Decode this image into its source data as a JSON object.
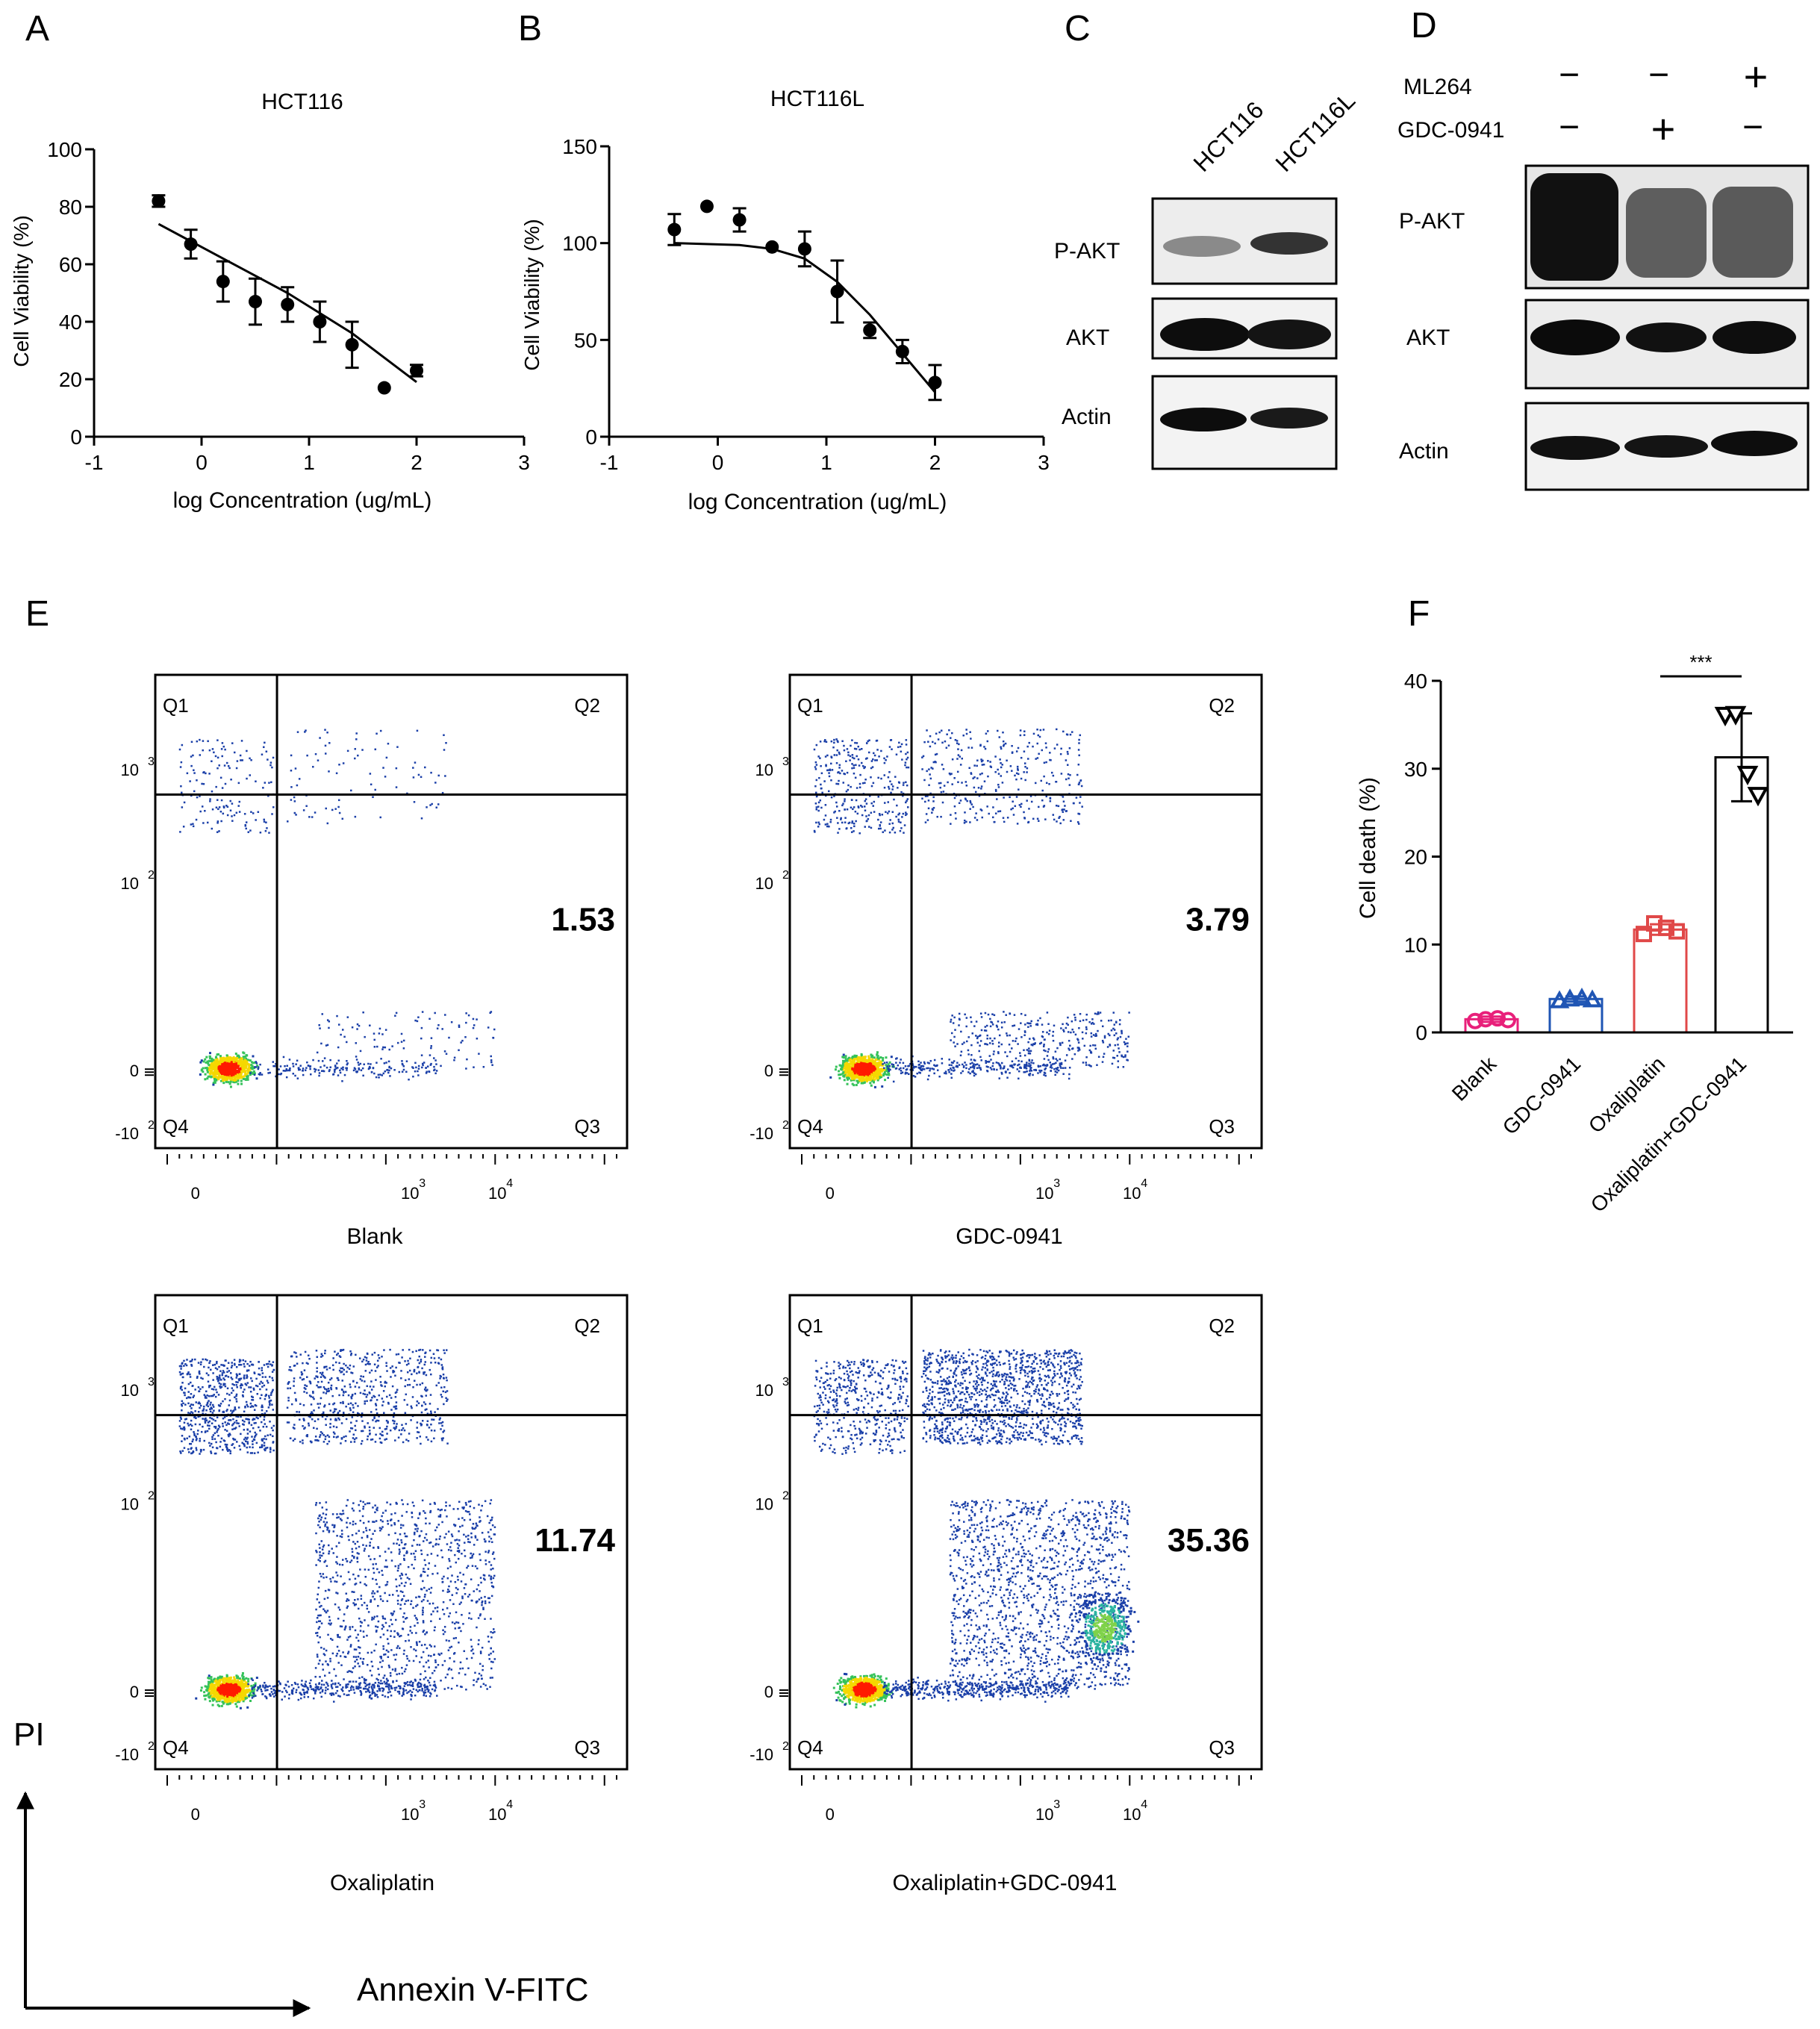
{
  "panels": {
    "A": {
      "letter": "A"
    },
    "B": {
      "letter": "B"
    },
    "C": {
      "letter": "C"
    },
    "D": {
      "letter": "D"
    },
    "E": {
      "letter": "E"
    },
    "F": {
      "letter": "F"
    }
  },
  "blots": {
    "C": {
      "lanes": [
        "HCT116",
        "HCT116L"
      ],
      "rows": [
        "P-AKT",
        "AKT",
        "Actin"
      ]
    },
    "D": {
      "treatments": [
        {
          "name": "ML264",
          "marks": [
            "−",
            "−",
            "+"
          ]
        },
        {
          "name": "GDC-0941",
          "marks": [
            "−",
            "+",
            "−"
          ]
        }
      ],
      "rows": [
        "P-AKT",
        "AKT",
        "Actin"
      ]
    }
  },
  "flow": {
    "quadrants": [
      "Q1",
      "Q2",
      "Q3",
      "Q4"
    ],
    "x_axis_title": "Annexin V-FITC",
    "y_axis_title": "PI",
    "x_ticks": [
      "0",
      "10",
      "10"
    ],
    "x_tick_exponents": [
      "",
      "3",
      "4"
    ],
    "y_ticks": [
      "-10",
      "0",
      "10",
      "10"
    ],
    "y_tick_exponents": [
      "2",
      "",
      "2",
      "3"
    ],
    "plots": [
      {
        "label": "Blank",
        "q3_value": "1.53"
      },
      {
        "label": "GDC-0941",
        "q3_value": "3.79"
      },
      {
        "label": "Oxaliplatin",
        "q3_value": "11.74"
      },
      {
        "label": "Oxaliplatin+GDC-0941",
        "q3_value": "35.36"
      }
    ]
  },
  "colors": {
    "blank": "#e8207a",
    "gdc": "#1f55b4",
    "oxali": "#e04848",
    "combo": "#000000",
    "flow_low": "#1a3fa8",
    "flow_high": "#ff1a00"
  },
  "chart_data": [
    {
      "type": "scatter",
      "panel": "A",
      "title": "HCT116",
      "xlabel": "log Concentration (ug/mL)",
      "ylabel": "Cell Viability (%)",
      "xlim": [
        -1,
        3
      ],
      "ylim": [
        0,
        100
      ],
      "xticks": [
        -1,
        0,
        1,
        2,
        3
      ],
      "yticks": [
        0,
        20,
        40,
        60,
        80,
        100
      ],
      "x": [
        -0.4,
        -0.1,
        0.2,
        0.5,
        0.8,
        1.1,
        1.4,
        1.7,
        2.0
      ],
      "y": [
        82,
        67,
        54,
        47,
        46,
        40,
        32,
        17,
        23
      ],
      "err": [
        2,
        5,
        7,
        8,
        6,
        7,
        8,
        0,
        2
      ],
      "fit_x": [
        -0.4,
        0.2,
        0.8,
        1.4,
        2.0
      ],
      "fit_y": [
        74,
        62,
        50,
        36,
        19
      ]
    },
    {
      "type": "scatter",
      "panel": "B",
      "title": "HCT116L",
      "xlabel": "log Concentration (ug/mL)",
      "ylabel": "Cell Viability (%)",
      "xlim": [
        -1,
        3
      ],
      "ylim": [
        0,
        150
      ],
      "xticks": [
        -1,
        0,
        1,
        2,
        3
      ],
      "yticks": [
        0,
        50,
        100,
        150
      ],
      "x": [
        -0.4,
        -0.1,
        0.2,
        0.5,
        0.8,
        1.1,
        1.4,
        1.7,
        2.0
      ],
      "y": [
        107,
        119,
        112,
        98,
        97,
        75,
        55,
        44,
        28
      ],
      "err": [
        8,
        0,
        6,
        0,
        9,
        16,
        4,
        6,
        9
      ],
      "fit_x": [
        -0.4,
        0.2,
        0.5,
        0.8,
        1.1,
        1.4,
        1.7,
        2.0
      ],
      "fit_y": [
        100,
        99,
        97,
        92,
        80,
        63,
        43,
        23
      ]
    },
    {
      "type": "bar",
      "panel": "F",
      "ylabel": "Cell death (%)",
      "ylim": [
        0,
        40
      ],
      "yticks": [
        0,
        10,
        20,
        30,
        40
      ],
      "categories": [
        "Blank",
        "GDC-0941",
        "Oxaliplatin",
        "Oxaliplatin+GDC-0941"
      ],
      "values": [
        1.5,
        3.8,
        11.7,
        31.3
      ],
      "sd": [
        0.3,
        0.3,
        0.6,
        5.0
      ],
      "points": [
        [
          1.3,
          1.5,
          1.6,
          1.4
        ],
        [
          3.6,
          3.8,
          3.9,
          3.7
        ],
        [
          11.2,
          12.4,
          11.9,
          11.5
        ],
        [
          36.1,
          36.2,
          29.4,
          27.0
        ]
      ],
      "significance": {
        "between": [
          2,
          3
        ],
        "label": "***"
      }
    }
  ]
}
